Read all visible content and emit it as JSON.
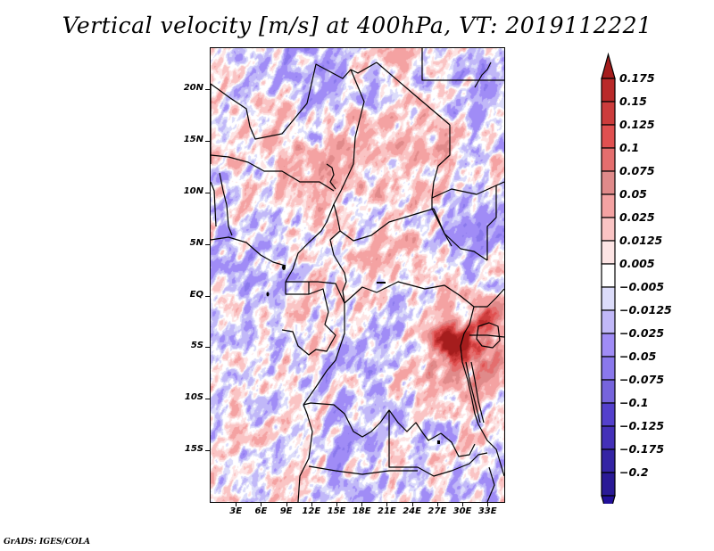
{
  "title": "Vertical velocity [m/s] at 400hPa, VT: 2019112221",
  "credit": "GrADS: IGES/COLA",
  "map": {
    "variable": "Vertical velocity",
    "units": "m/s",
    "level": "400hPa",
    "valid_time": "2019112221",
    "lon_range": [
      0,
      35
    ],
    "lat_range": [
      -20,
      24
    ],
    "y_ticks": [
      {
        "label": "20N",
        "lat": 20
      },
      {
        "label": "15N",
        "lat": 15
      },
      {
        "label": "10N",
        "lat": 10
      },
      {
        "label": "5N",
        "lat": 5
      },
      {
        "label": "EQ",
        "lat": 0
      },
      {
        "label": "5S",
        "lat": -5
      },
      {
        "label": "10S",
        "lat": -10
      },
      {
        "label": "15S",
        "lat": -15
      }
    ],
    "x_ticks": [
      {
        "label": "3E",
        "lon": 3
      },
      {
        "label": "6E",
        "lon": 6
      },
      {
        "label": "9E",
        "lon": 9
      },
      {
        "label": "12E",
        "lon": 12
      },
      {
        "label": "15E",
        "lon": 15
      },
      {
        "label": "18E",
        "lon": 18
      },
      {
        "label": "21E",
        "lon": 21
      },
      {
        "label": "24E",
        "lon": 24
      },
      {
        "label": "27E",
        "lon": 27
      },
      {
        "label": "30E",
        "lon": 30
      },
      {
        "label": "33E",
        "lon": 33
      }
    ]
  },
  "colorbar": {
    "levels": [
      "0.175",
      "0.15",
      "0.125",
      "0.1",
      "0.075",
      "0.05",
      "0.025",
      "0.0125",
      "0.005",
      "−0.005",
      "−0.0125",
      "−0.025",
      "−0.05",
      "−0.075",
      "−0.1",
      "−0.125",
      "−0.175",
      "−0.2"
    ],
    "colors_top_to_bottom": [
      "#a51d1d",
      "#b92a2a",
      "#cc3c3c",
      "#e05050",
      "#e46e6e",
      "#e08a8a",
      "#f4a2a2",
      "#fac4c4",
      "#fde4e4",
      "#ffffff",
      "#dcdcfa",
      "#c1b8f8",
      "#a08cf6",
      "#8a78ec",
      "#7664dc",
      "#5440cc",
      "#4430b8",
      "#3424a4",
      "#2a1a96",
      "#22109a"
    ]
  }
}
